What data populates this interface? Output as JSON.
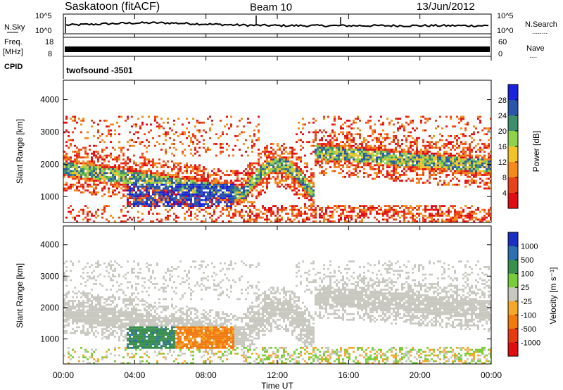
{
  "header": {
    "title": "Saskatoon (fitACF)",
    "beam": "Beam 10",
    "date": "13/Jun/2012"
  },
  "nsky_panel": {
    "left_label": "N.Sky",
    "left_ticks": [
      "10^5",
      "10^0"
    ],
    "right_label": "N.Search",
    "right_ticks": [
      "10^5",
      "10^0"
    ],
    "dots": "........"
  },
  "freq_panel": {
    "left_label_1": "Freq.",
    "left_label_2": "[MHz]",
    "left_ticks": [
      "18",
      "8"
    ],
    "right_label": "Nave",
    "right_ticks": [
      "60",
      "0"
    ],
    "dots": "...."
  },
  "cpid_panel": {
    "label": "CPID",
    "program": "twofsound -3501"
  },
  "chart_data": [
    {
      "type": "heatmap",
      "name": "power",
      "ylabel": "Slant Range [km]",
      "ylim": [
        200,
        4600
      ],
      "yticks": [
        "1000",
        "2000",
        "3000",
        "4000"
      ],
      "xlim": [
        0,
        24
      ],
      "colorbar": {
        "label": "Power [dB]",
        "ticks": [
          "4",
          "8",
          "12",
          "16",
          "20",
          "24",
          "28"
        ],
        "colors": [
          "#1a23d9",
          "#2a55a8",
          "#3e8e6e",
          "#8fd14a",
          "#f2c42a",
          "#f28a1c",
          "#e8421a",
          "#e00e14"
        ]
      }
    },
    {
      "type": "heatmap",
      "name": "velocity",
      "ylabel": "Slant Range [km]",
      "ylim": [
        200,
        4600
      ],
      "yticks": [
        "1000",
        "2000",
        "3000",
        "4000"
      ],
      "xlim": [
        0,
        24
      ],
      "colorbar": {
        "label": "Velocity [m s⁻¹]",
        "ticks": [
          "1000",
          "500",
          "100",
          "25",
          "-25",
          "-100",
          "-500",
          "-1000"
        ],
        "colors": [
          "#1c2fc4",
          "#2d6fb0",
          "#3a8e4e",
          "#7acc3a",
          "#c8c8c0",
          "#f5a82a",
          "#f07a10",
          "#e83a10",
          "#e00e0e"
        ]
      }
    }
  ],
  "xaxis": {
    "label": "Time UT",
    "ticks": [
      "00:00",
      "04:00",
      "08:00",
      "12:00",
      "16:00",
      "20:00",
      "00:00"
    ]
  }
}
